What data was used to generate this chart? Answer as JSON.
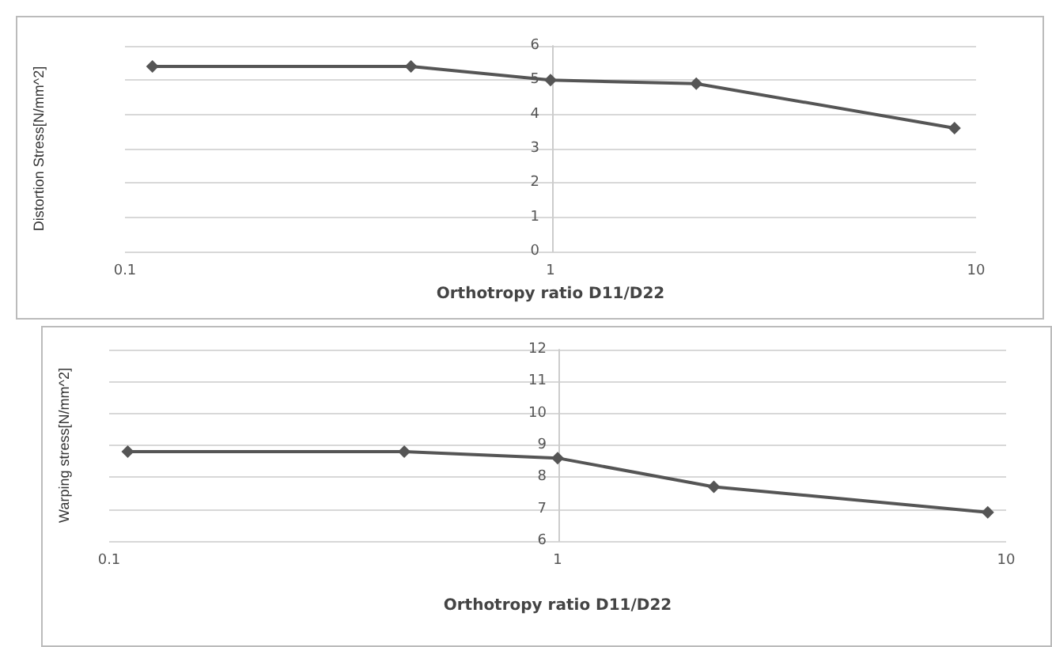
{
  "chart_data": [
    {
      "type": "line",
      "xlabel": "Orthotropy ratio D11/D22",
      "ylabel": "Distortion Stress[N/mm^2]",
      "x": [
        0.116,
        0.47,
        1,
        2.2,
        8.9
      ],
      "series": [
        {
          "color": "#555555",
          "values": [
            5.4,
            5.4,
            5.0,
            4.9,
            3.6
          ]
        }
      ],
      "xlim": [
        0.1,
        10
      ],
      "xticks": [
        0.1,
        1,
        10
      ],
      "ylim": [
        0,
        6
      ],
      "yticks": [
        0,
        1,
        2,
        3,
        4,
        5,
        6
      ],
      "log": "x",
      "grid": "y",
      "marker": "diamond",
      "line_style": "solid"
    },
    {
      "type": "line",
      "xlabel": "Orthotropy ratio D11/D22",
      "ylabel": "Warping stress[N/mm^2]",
      "x": [
        0.11,
        0.455,
        1,
        2.23,
        9.1
      ],
      "series": [
        {
          "color": "#555555",
          "values": [
            8.8,
            8.8,
            8.6,
            7.7,
            6.9
          ]
        }
      ],
      "xlim": [
        0.1,
        10
      ],
      "xticks": [
        0.1,
        1,
        10
      ],
      "ylim": [
        6,
        12
      ],
      "yticks": [
        6,
        7,
        8,
        9,
        10,
        11,
        12
      ],
      "log": "x",
      "grid": "y",
      "marker": "diamond",
      "line_style": "solid"
    }
  ]
}
